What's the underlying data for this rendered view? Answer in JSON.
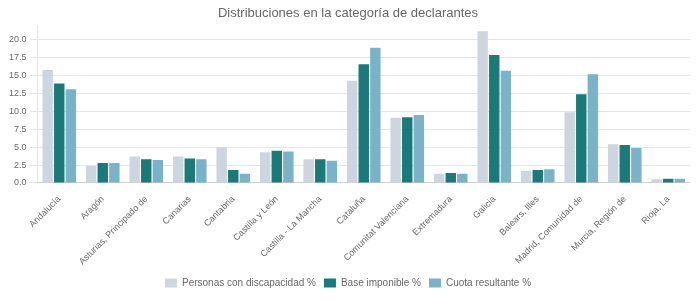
{
  "chart_data": {
    "type": "bar",
    "title": "Distribuciones en la categoría de declarantes",
    "categories": [
      "Andalucía",
      "Aragón",
      "Asturias, Principado de",
      "Canarias",
      "Cantabria",
      "Castilla y León",
      "Castilla - La Mancha",
      "Cataluña",
      "Comunitat Valenciana",
      "Extremadura",
      "Galicia",
      "Balears, Illes",
      "Madrid, Comunidad de",
      "Murcia, Región de",
      "Rioja, La"
    ],
    "series": [
      {
        "name": "Personas con discapacidad %",
        "color": "#cdd5e0",
        "values": [
          15.8,
          2.4,
          3.7,
          3.7,
          5.0,
          4.3,
          3.3,
          14.3,
          9.1,
          1.3,
          21.2,
          1.7,
          9.9,
          5.4,
          0.5
        ]
      },
      {
        "name": "Base imponible %",
        "color": "#1a7a7a",
        "values": [
          13.9,
          2.8,
          3.3,
          3.4,
          1.8,
          4.5,
          3.3,
          16.6,
          9.2,
          1.4,
          17.9,
          1.8,
          12.4,
          5.3,
          0.6
        ]
      },
      {
        "name": "Cuota resultante %",
        "color": "#7ab3c8",
        "values": [
          13.1,
          2.8,
          3.2,
          3.3,
          1.3,
          4.4,
          3.1,
          18.9,
          9.5,
          1.3,
          15.7,
          1.9,
          15.2,
          4.9,
          0.6
        ]
      }
    ],
    "ylim": [
      0,
      22
    ],
    "yticks": [
      {
        "value": 0,
        "label": "0.0"
      },
      2.5,
      {
        "value": 5,
        "label": "5.0"
      },
      7.5,
      {
        "value": 10,
        "label": "10.0"
      },
      12.5,
      {
        "value": 15,
        "label": "15.0"
      },
      17.5,
      {
        "value": 20,
        "label": "20.0"
      }
    ],
    "grid": true,
    "legend": "bottom"
  }
}
